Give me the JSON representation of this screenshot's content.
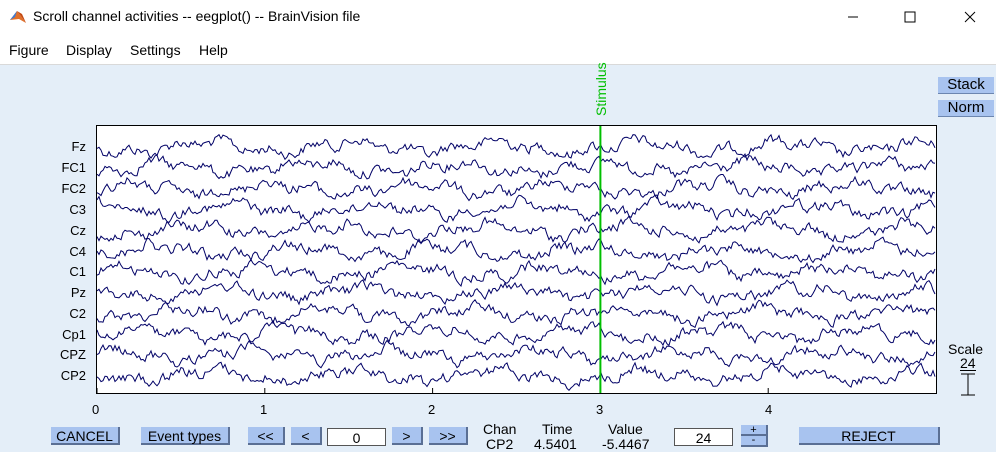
{
  "window": {
    "title": "Scroll channel activities -- eegplot() -- BrainVision file",
    "controls": [
      "minimize",
      "maximize",
      "close"
    ]
  },
  "menu": [
    "Figure",
    "Display",
    "Settings",
    "Help"
  ],
  "side_buttons": {
    "stack": "Stack",
    "norm": "Norm"
  },
  "plot": {
    "channels": [
      "Fz",
      "FC1",
      "FC2",
      "C3",
      "Cz",
      "C4",
      "C1",
      "Pz",
      "C2",
      "Cp1",
      "CPZ",
      "CP2"
    ],
    "xticks": [
      "0",
      "1",
      "2",
      "3",
      "4"
    ],
    "trace_color": "#000066",
    "event": {
      "label": "Stimulus",
      "time": 3,
      "color": "#00bf00"
    },
    "xlim": [
      0,
      5
    ]
  },
  "scale": {
    "label": "Scale",
    "value": "24"
  },
  "bottom": {
    "cancel": "CANCEL",
    "event_types": "Event types",
    "prev_page": "<<",
    "prev": "<",
    "position": "0",
    "next": ">",
    "next_page": ">>",
    "chan_header": "Chan",
    "time_header": "Time",
    "value_header": "Value",
    "chan_value": "CP2",
    "time_value": "4.5401",
    "value_value": "-5.4467",
    "scale_entry": "24",
    "plus": "+",
    "minus": "-",
    "reject": "REJECT"
  }
}
